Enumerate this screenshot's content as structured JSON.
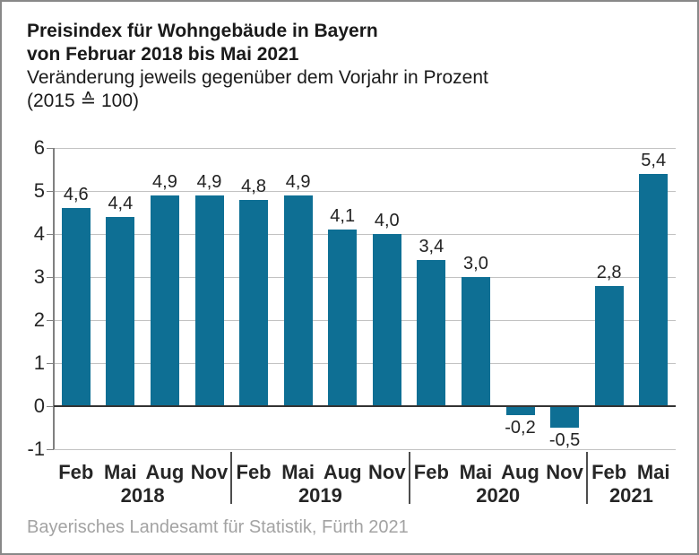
{
  "title": {
    "line1": "Preisindex für Wohngebäude in Bayern",
    "line2": "von Februar 2018 bis Mai 2021",
    "subtitle1": "Veränderung jeweils gegenüber dem Vorjahr in Prozent",
    "subtitle2": "(2015 ≙ 100)"
  },
  "source": "Bayerisches Landesamt für Statistik, Fürth 2021",
  "colors": {
    "bar": "#0e6f94",
    "grid": "#c2c2c2",
    "zero_line": "#333333",
    "axis": "#808080",
    "separator": "#4d4d4d",
    "label_text": "#222222",
    "axis_text": "#262626",
    "source_text": "#a3a3a3",
    "border": "#888888"
  },
  "chart_data": {
    "type": "bar",
    "title": "Preisindex für Wohngebäude in Bayern von Februar 2018 bis Mai 2021",
    "ylabel": "Veränderung jeweils gegenüber dem Vorjahr in Prozent (2015 ≙ 100)",
    "xlabel": "",
    "grid": true,
    "legend": false,
    "ylim": [
      -1,
      6
    ],
    "yticks": [
      6,
      5,
      4,
      3,
      2,
      1,
      0,
      -1
    ],
    "decimal_separator": ",",
    "groups": [
      {
        "year": "2018",
        "months": [
          "Feb",
          "Mai",
          "Aug",
          "Nov"
        ]
      },
      {
        "year": "2019",
        "months": [
          "Feb",
          "Mai",
          "Aug",
          "Nov"
        ]
      },
      {
        "year": "2020",
        "months": [
          "Feb",
          "Mai",
          "Aug",
          "Nov"
        ]
      },
      {
        "year": "2021",
        "months": [
          "Feb",
          "Mai"
        ]
      }
    ],
    "categories": [
      "Feb 2018",
      "Mai 2018",
      "Aug 2018",
      "Nov 2018",
      "Feb 2019",
      "Mai 2019",
      "Aug 2019",
      "Nov 2019",
      "Feb 2020",
      "Mai 2020",
      "Aug 2020",
      "Nov 2020",
      "Feb 2021",
      "Mai 2021"
    ],
    "values": [
      4.6,
      4.4,
      4.9,
      4.9,
      4.8,
      4.9,
      4.1,
      4.0,
      3.4,
      3.0,
      -0.2,
      -0.5,
      2.8,
      5.4
    ],
    "value_labels": [
      "4,6",
      "4,4",
      "4,9",
      "4,9",
      "4,8",
      "4,9",
      "4,1",
      "4,0",
      "3,4",
      "3,0",
      "-0,2",
      "-0,5",
      "2,8",
      "5,4"
    ]
  }
}
